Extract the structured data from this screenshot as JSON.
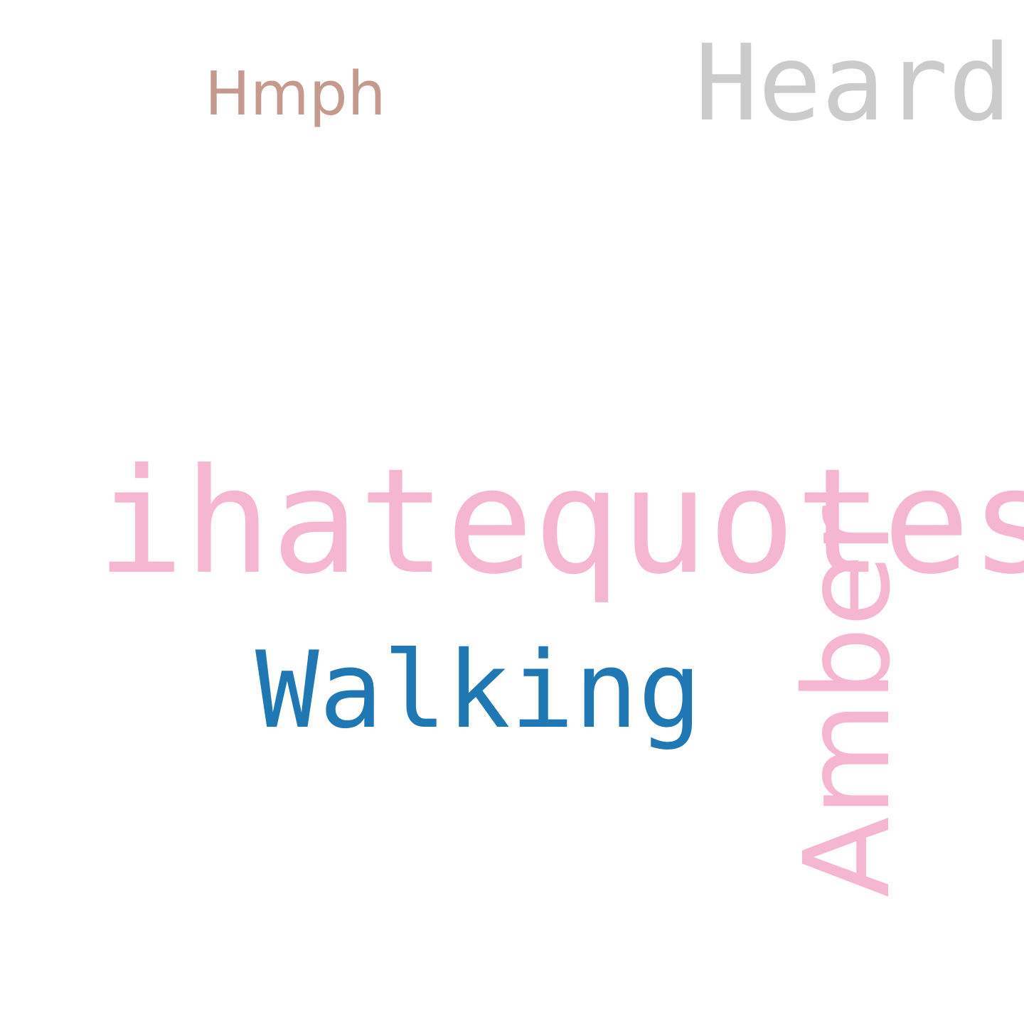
{
  "words": [
    {
      "text": "Hmph",
      "color": "#c49a8f"
    },
    {
      "text": "Heard",
      "color": "#cbcbcb"
    },
    {
      "text": "ihatequotes",
      "color": "#f5b6d2"
    },
    {
      "text": "Walking",
      "color": "#1f78b4"
    },
    {
      "text": "Amber",
      "color": "#f5b6d2"
    }
  ]
}
